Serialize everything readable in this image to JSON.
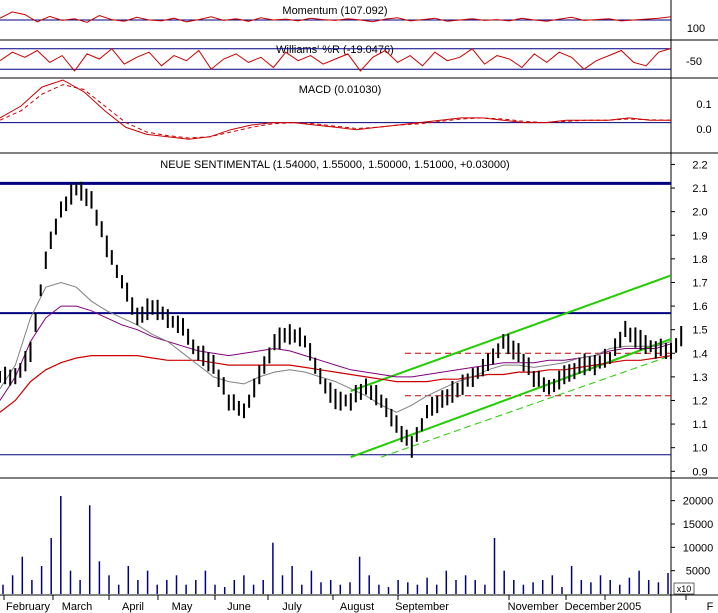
{
  "chart_data": [
    {
      "type": "line",
      "panel": "momentum",
      "title": "Momentum (107.092)",
      "yticks": [
        "100"
      ],
      "ylim": [
        60,
        140
      ],
      "reference_level": 100,
      "series": [
        {
          "values": [
            104,
            118,
            112,
            96,
            108,
            99,
            103,
            95,
            110,
            101,
            97,
            106,
            100,
            98,
            104,
            96,
            101,
            107,
            99,
            103,
            97,
            105,
            100,
            102,
            98,
            104,
            101,
            99,
            103,
            100,
            96,
            102,
            105,
            98,
            101,
            104,
            97,
            100,
            103,
            99,
            101,
            98,
            104,
            100,
            97,
            102,
            106,
            99,
            101,
            103,
            98,
            100,
            102,
            104,
            107
          ]
        }
      ],
      "colors": {
        "series": "#cc0000",
        "reference": "#000080"
      }
    },
    {
      "type": "line",
      "panel": "williams",
      "title": "Williams' %R (-19.0476)",
      "yticks": [
        "-50"
      ],
      "ylim": [
        -100,
        0
      ],
      "reference_levels": [
        -20,
        -80
      ],
      "series": [
        {
          "values": [
            -55,
            -30,
            -45,
            -25,
            -60,
            -40,
            -85,
            -35,
            -50,
            -20,
            -65,
            -45,
            -30,
            -70,
            -40,
            -55,
            -25,
            -80,
            -50,
            -35,
            -60,
            -45,
            -75,
            -30,
            -55,
            -40,
            -65,
            -50,
            -35,
            -85,
            -45,
            -25,
            -60,
            -40,
            -70,
            -30,
            -55,
            -45,
            -20,
            -65,
            -40,
            -50,
            -75,
            -35,
            -60,
            -30,
            -45,
            -80,
            -55,
            -40,
            -25,
            -60,
            -70,
            -30,
            -19
          ]
        }
      ],
      "colors": {
        "series": "#cc0000",
        "reference": "#000080"
      }
    },
    {
      "type": "line",
      "panel": "macd",
      "title": "MACD (0.01030)",
      "yticks": [
        "0.1",
        "0.0"
      ],
      "ylim": [
        -0.12,
        0.18
      ],
      "series": [
        {
          "style": "solid",
          "values": [
            0.02,
            0.07,
            0.15,
            0.18,
            0.13,
            0.05,
            -0.02,
            -0.05,
            -0.06,
            -0.07,
            -0.06,
            -0.03,
            -0.01,
            0.0,
            0.0,
            -0.01,
            -0.02,
            -0.03,
            -0.02,
            -0.01,
            0.0,
            0.01,
            0.02,
            0.02,
            0.01,
            0.0,
            0.0,
            0.01,
            0.01,
            0.01,
            0.02,
            0.01,
            0.01
          ]
        },
        {
          "style": "dashed",
          "values": [
            0.01,
            0.05,
            0.12,
            0.16,
            0.14,
            0.07,
            0.0,
            -0.04,
            -0.055,
            -0.065,
            -0.06,
            -0.04,
            -0.02,
            -0.005,
            0.0,
            -0.005,
            -0.015,
            -0.025,
            -0.02,
            -0.01,
            -0.005,
            0.005,
            0.015,
            0.02,
            0.015,
            0.005,
            0.0,
            0.005,
            0.01,
            0.01,
            0.015,
            0.012,
            0.01
          ]
        }
      ],
      "colors": {
        "solid": "#cc0000",
        "dashed": "#cc0000",
        "zero": "#000080"
      }
    },
    {
      "type": "line",
      "panel": "price",
      "title": "NEUE SENTIMENTAL (1.54000, 1.55000, 1.50000, 1.51000, +0.03000)",
      "yticks": [
        "2.2",
        "2.1",
        "2.0",
        "1.9",
        "1.8",
        "1.7",
        "1.6",
        "1.5",
        "1.4",
        "1.3",
        "1.2",
        "1.1",
        "1.0",
        "0.9"
      ],
      "ylim": [
        0.88,
        2.24
      ],
      "x": [
        "February",
        "March",
        "April",
        "May",
        "June",
        "July",
        "August",
        "September",
        "November",
        "December",
        "2005",
        "F"
      ],
      "price": [
        1.3,
        1.4,
        1.8,
        2.0,
        2.1,
        2.05,
        1.85,
        1.7,
        1.55,
        1.6,
        1.55,
        1.5,
        1.4,
        1.35,
        1.2,
        1.15,
        1.3,
        1.45,
        1.48,
        1.45,
        1.3,
        1.2,
        1.2,
        1.25,
        1.2,
        1.1,
        1.0,
        1.15,
        1.2,
        1.25,
        1.3,
        1.35,
        1.45,
        1.4,
        1.3,
        1.25,
        1.3,
        1.35,
        1.35,
        1.38,
        1.5,
        1.45,
        1.42,
        1.4,
        1.5
      ],
      "ma_short": [
        1.25,
        1.35,
        1.55,
        1.68,
        1.7,
        1.68,
        1.62,
        1.58,
        1.55,
        1.52,
        1.48,
        1.45,
        1.4,
        1.35,
        1.3,
        1.28,
        1.27,
        1.3,
        1.32,
        1.33,
        1.32,
        1.3,
        1.28,
        1.25,
        1.22,
        1.18,
        1.15,
        1.18,
        1.22,
        1.25,
        1.28,
        1.3,
        1.33,
        1.35,
        1.35,
        1.34,
        1.35,
        1.36,
        1.38,
        1.39,
        1.42,
        1.43,
        1.43,
        1.43,
        1.45
      ],
      "ma_mid": [
        1.2,
        1.3,
        1.45,
        1.55,
        1.6,
        1.6,
        1.58,
        1.55,
        1.52,
        1.5,
        1.47,
        1.45,
        1.43,
        1.41,
        1.4,
        1.39,
        1.4,
        1.41,
        1.42,
        1.41,
        1.39,
        1.37,
        1.35,
        1.33,
        1.32,
        1.31,
        1.3,
        1.3,
        1.31,
        1.32,
        1.33,
        1.34,
        1.35,
        1.36,
        1.36,
        1.36,
        1.37,
        1.37,
        1.38,
        1.39,
        1.41,
        1.42,
        1.42,
        1.42,
        1.44
      ],
      "ma_long": [
        1.15,
        1.2,
        1.28,
        1.33,
        1.36,
        1.38,
        1.39,
        1.39,
        1.39,
        1.39,
        1.38,
        1.37,
        1.37,
        1.37,
        1.36,
        1.35,
        1.35,
        1.35,
        1.35,
        1.35,
        1.34,
        1.33,
        1.32,
        1.31,
        1.3,
        1.29,
        1.28,
        1.28,
        1.28,
        1.29,
        1.29,
        1.3,
        1.31,
        1.31,
        1.32,
        1.32,
        1.33,
        1.33,
        1.34,
        1.35,
        1.36,
        1.37,
        1.37,
        1.38,
        1.39
      ],
      "support_resistance": [
        2.12,
        1.57,
        0.97
      ],
      "dashed_levels": [
        1.4,
        1.22
      ],
      "channel_upper": [
        [
          23,
          1.24
        ],
        [
          44,
          1.73
        ]
      ],
      "channel_lower": [
        [
          23,
          0.96
        ],
        [
          44,
          1.46
        ]
      ],
      "channel_dashed": [
        [
          25,
          0.96
        ],
        [
          44,
          1.39
        ]
      ],
      "colors": {
        "price": "#000000",
        "ma_short": "#808080",
        "ma_mid": "#800080",
        "ma_long": "#cc0000",
        "levels": "#000080",
        "channel": "#22cc00",
        "dashed": "#cc0000"
      }
    },
    {
      "type": "bar",
      "panel": "volume",
      "yticks": [
        "20000",
        "15000",
        "10000",
        "5000"
      ],
      "ylim": [
        0,
        24000
      ],
      "unit_label": "x10",
      "values": [
        2000,
        4000,
        8000,
        3000,
        6000,
        12000,
        21000,
        5000,
        3000,
        19000,
        7000,
        4000,
        2000,
        6000,
        3000,
        5000,
        2000,
        3000,
        4000,
        2000,
        3000,
        5000,
        2000,
        1500,
        3000,
        4000,
        2000,
        3000,
        11000,
        4000,
        6000,
        2000,
        5000,
        2500,
        3000,
        2000,
        2500,
        8000,
        4000,
        2000,
        1500,
        3000,
        2500,
        2000,
        3500,
        2000,
        5000,
        3000,
        4000,
        3000,
        2000,
        12000,
        5000,
        3000,
        2000,
        2500,
        3000,
        4000,
        1500,
        6000,
        3000,
        2500,
        4000,
        3000,
        2000,
        3500,
        5000,
        3000,
        2500,
        4500
      ],
      "colors": {
        "bars": "#000080"
      }
    }
  ]
}
